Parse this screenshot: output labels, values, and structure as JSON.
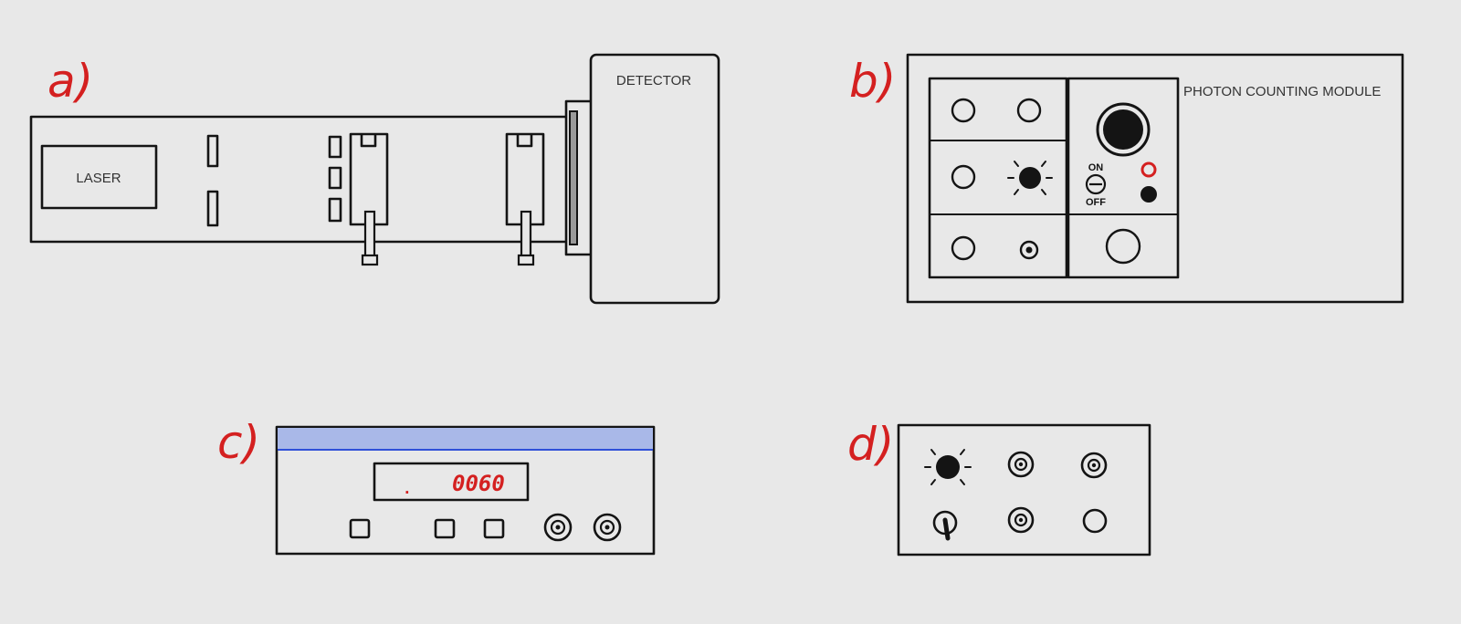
{
  "panel_a": {
    "tag": "a)",
    "laser_label": "LASER",
    "detector_label": "DETECTOR"
  },
  "panel_b": {
    "tag": "b)",
    "module_label": "PHOTON COUNTING MODULE",
    "switch_on_label": "ON",
    "switch_off_label": "OFF"
  },
  "panel_c": {
    "tag": "c)",
    "display_value": "0060",
    "display_dot": "."
  },
  "panel_d": {
    "tag": "d)"
  },
  "colors": {
    "background": "#e8e8e8",
    "ink": "#141414",
    "annotation_red": "#d42020",
    "display_red": "#d42020",
    "header_band": "#a9b8e8",
    "header_line": "#2f4fd8",
    "indicator_red": "#d42020"
  }
}
